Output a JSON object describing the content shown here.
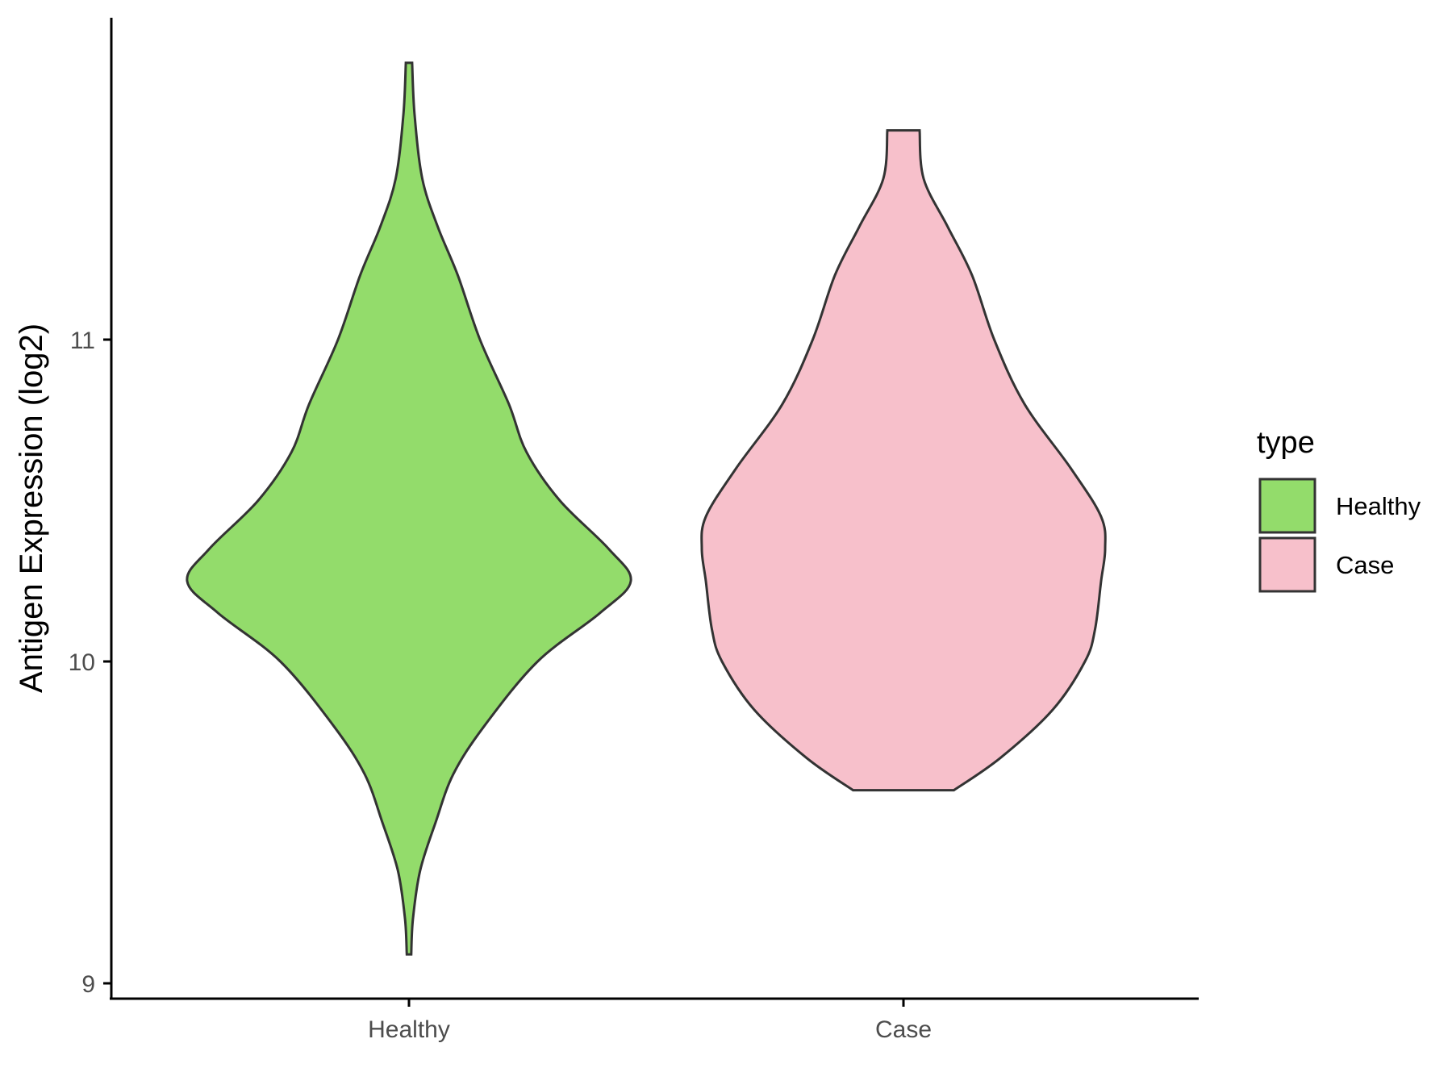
{
  "chart_data": {
    "type": "violin",
    "ylabel": "Antigen Expression (log2)",
    "xlabel": "",
    "categories": [
      "Healthy",
      "Case"
    ],
    "y_ticks": [
      "9",
      "10",
      "11"
    ],
    "ylim": [
      8.95,
      12.0
    ],
    "legend": {
      "title": "type",
      "position": "right",
      "entries": [
        {
          "label": "Healthy",
          "color": "#93DC6B"
        },
        {
          "label": "Case",
          "color": "#F7C0CB"
        }
      ]
    },
    "series": [
      {
        "name": "Healthy",
        "color": "#93DC6B",
        "y_range": [
          9.09,
          11.86
        ],
        "density_profile": [
          [
            9.09,
            0.01
          ],
          [
            9.2,
            0.018
          ],
          [
            9.35,
            0.05
          ],
          [
            9.5,
            0.12
          ],
          [
            9.65,
            0.2
          ],
          [
            9.8,
            0.34
          ],
          [
            10.0,
            0.58
          ],
          [
            10.15,
            0.86
          ],
          [
            10.25,
            1.0
          ],
          [
            10.35,
            0.9
          ],
          [
            10.5,
            0.68
          ],
          [
            10.65,
            0.53
          ],
          [
            10.8,
            0.45
          ],
          [
            11.0,
            0.32
          ],
          [
            11.2,
            0.22
          ],
          [
            11.35,
            0.13
          ],
          [
            11.5,
            0.06
          ],
          [
            11.7,
            0.025
          ],
          [
            11.86,
            0.014
          ]
        ]
      },
      {
        "name": "Case",
        "color": "#F7C0CB",
        "y_range": [
          9.6,
          11.65
        ],
        "density_profile": [
          [
            9.6,
            0.25
          ],
          [
            9.7,
            0.48
          ],
          [
            9.85,
            0.74
          ],
          [
            10.0,
            0.9
          ],
          [
            10.1,
            0.95
          ],
          [
            10.25,
            0.98
          ],
          [
            10.35,
            1.0
          ],
          [
            10.45,
            0.98
          ],
          [
            10.6,
            0.83
          ],
          [
            10.8,
            0.6
          ],
          [
            11.0,
            0.45
          ],
          [
            11.2,
            0.34
          ],
          [
            11.35,
            0.22
          ],
          [
            11.5,
            0.1
          ],
          [
            11.65,
            0.08
          ]
        ]
      }
    ]
  }
}
